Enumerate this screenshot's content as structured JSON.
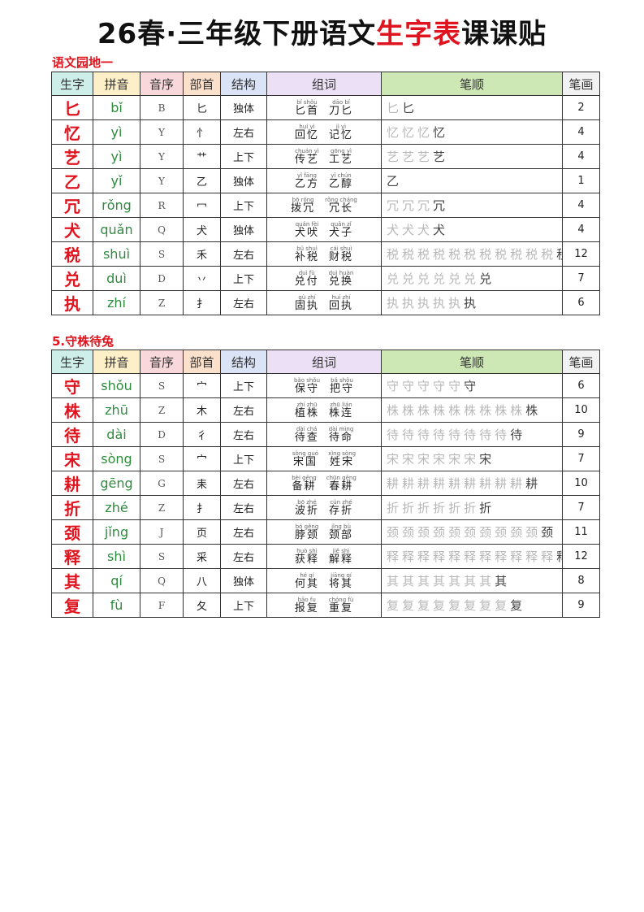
{
  "title": {
    "prefix": "26春·三年级下册语文",
    "highlight": "生字表",
    "suffix": "课课贴"
  },
  "headers": [
    "生字",
    "拼音",
    "音序",
    "部首",
    "结构",
    "组词",
    "笔顺",
    "笔画"
  ],
  "sections": [
    {
      "title": "语文园地一",
      "rows": [
        {
          "char": "匕",
          "pinyin": "bǐ",
          "index": "B",
          "radical": "匕",
          "structure": "独体",
          "words": [
            {
              "py": "bǐ shǒu",
              "w": "匕首"
            },
            {
              "py": "dāo bǐ",
              "w": "刀匕"
            }
          ],
          "strokes": 2
        },
        {
          "char": "忆",
          "pinyin": "yì",
          "index": "Y",
          "radical": "忄",
          "structure": "左右",
          "words": [
            {
              "py": "huí yì",
              "w": "回忆"
            },
            {
              "py": "jì yì",
              "w": "记忆"
            }
          ],
          "strokes": 4
        },
        {
          "char": "艺",
          "pinyin": "yì",
          "index": "Y",
          "radical": "艹",
          "structure": "上下",
          "words": [
            {
              "py": "chuán yì",
              "w": "传艺"
            },
            {
              "py": "gōng yì",
              "w": "工艺"
            }
          ],
          "strokes": 4
        },
        {
          "char": "乙",
          "pinyin": "yǐ",
          "index": "Y",
          "radical": "乙",
          "structure": "独体",
          "words": [
            {
              "py": "yǐ fāng",
              "w": "乙方"
            },
            {
              "py": "yǐ chún",
              "w": "乙醇"
            }
          ],
          "strokes": 1
        },
        {
          "char": "冗",
          "pinyin": "rǒng",
          "index": "R",
          "radical": "冖",
          "structure": "上下",
          "words": [
            {
              "py": "bō rǒng",
              "w": "拨冗"
            },
            {
              "py": "rǒng cháng",
              "w": "冗长"
            }
          ],
          "strokes": 4
        },
        {
          "char": "犬",
          "pinyin": "quǎn",
          "index": "Q",
          "radical": "犬",
          "structure": "独体",
          "words": [
            {
              "py": "quǎn fèi",
              "w": "犬吠"
            },
            {
              "py": "quǎn zǐ",
              "w": "犬子"
            }
          ],
          "strokes": 4
        },
        {
          "char": "税",
          "pinyin": "shuì",
          "index": "S",
          "radical": "禾",
          "structure": "左右",
          "words": [
            {
              "py": "bǔ shuì",
              "w": "补税"
            },
            {
              "py": "cái shuì",
              "w": "财税"
            }
          ],
          "strokes": 12
        },
        {
          "char": "兑",
          "pinyin": "duì",
          "index": "D",
          "radical": "丷",
          "structure": "上下",
          "words": [
            {
              "py": "duì fù",
              "w": "兑付"
            },
            {
              "py": "duì huàn",
              "w": "兑换"
            }
          ],
          "strokes": 7
        },
        {
          "char": "执",
          "pinyin": "zhí",
          "index": "Z",
          "radical": "扌",
          "structure": "左右",
          "words": [
            {
              "py": "gù zhí",
              "w": "固执"
            },
            {
              "py": "huí zhí",
              "w": "回执"
            }
          ],
          "strokes": 6
        }
      ]
    },
    {
      "title": "5.守株待兔",
      "rows": [
        {
          "char": "守",
          "pinyin": "shǒu",
          "index": "S",
          "radical": "宀",
          "structure": "上下",
          "words": [
            {
              "py": "bǎo shǒu",
              "w": "保守"
            },
            {
              "py": "bǎ shǒu",
              "w": "把守"
            }
          ],
          "strokes": 6
        },
        {
          "char": "株",
          "pinyin": "zhū",
          "index": "Z",
          "radical": "木",
          "structure": "左右",
          "words": [
            {
              "py": "zhí zhū",
              "w": "植株"
            },
            {
              "py": "zhū lián",
              "w": "株连"
            }
          ],
          "strokes": 10
        },
        {
          "char": "待",
          "pinyin": "dài",
          "index": "D",
          "radical": "彳",
          "structure": "左右",
          "words": [
            {
              "py": "dài chá",
              "w": "待查"
            },
            {
              "py": "dài mìng",
              "w": "待命"
            }
          ],
          "strokes": 9
        },
        {
          "char": "宋",
          "pinyin": "sòng",
          "index": "S",
          "radical": "宀",
          "structure": "上下",
          "words": [
            {
              "py": "sòng guó",
              "w": "宋国"
            },
            {
              "py": "xìng sòng",
              "w": "姓宋"
            }
          ],
          "strokes": 7
        },
        {
          "char": "耕",
          "pinyin": "gēng",
          "index": "G",
          "radical": "耒",
          "structure": "左右",
          "words": [
            {
              "py": "bèi gēng",
              "w": "备耕"
            },
            {
              "py": "chūn gēng",
              "w": "春耕"
            }
          ],
          "strokes": 10
        },
        {
          "char": "折",
          "pinyin": "zhé",
          "index": "Z",
          "radical": "扌",
          "structure": "左右",
          "words": [
            {
              "py": "bō zhé",
              "w": "波折"
            },
            {
              "py": "cún zhé",
              "w": "存折"
            }
          ],
          "strokes": 7
        },
        {
          "char": "颈",
          "pinyin": "jǐng",
          "index": "J",
          "radical": "页",
          "structure": "左右",
          "words": [
            {
              "py": "bó gěng",
              "w": "脖颈"
            },
            {
              "py": "jǐng bù",
              "w": "颈部"
            }
          ],
          "strokes": 11
        },
        {
          "char": "释",
          "pinyin": "shì",
          "index": "S",
          "radical": "采",
          "structure": "左右",
          "words": [
            {
              "py": "huò shì",
              "w": "获释"
            },
            {
              "py": "jiě shì",
              "w": "解释"
            }
          ],
          "strokes": 12
        },
        {
          "char": "其",
          "pinyin": "qí",
          "index": "Q",
          "radical": "八",
          "structure": "独体",
          "words": [
            {
              "py": "hé qí",
              "w": "何其"
            },
            {
              "py": "jiāng qí",
              "w": "将其"
            }
          ],
          "strokes": 8
        },
        {
          "char": "复",
          "pinyin": "fù",
          "index": "F",
          "radical": "夂",
          "structure": "上下",
          "words": [
            {
              "py": "bāo fu",
              "w": "报复"
            },
            {
              "py": "chóng fù",
              "w": "重复"
            }
          ],
          "strokes": 9
        }
      ]
    }
  ]
}
